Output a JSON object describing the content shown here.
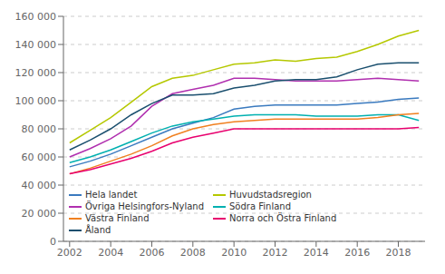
{
  "chart_data": {
    "type": "line",
    "x": [
      2002,
      2003,
      2004,
      2005,
      2006,
      2007,
      2008,
      2009,
      2010,
      2011,
      2012,
      2013,
      2014,
      2015,
      2016,
      2017,
      2018,
      2019
    ],
    "series": [
      {
        "name": "Hela landet",
        "color": "#3a7abf",
        "values": [
          53000,
          57000,
          62000,
          68000,
          74000,
          80000,
          84000,
          88000,
          94000,
          96000,
          97000,
          97000,
          97000,
          97000,
          98000,
          99000,
          101000,
          102000
        ]
      },
      {
        "name": "Huvudstadsregion",
        "color": "#b5c800",
        "values": [
          70000,
          79000,
          88000,
          99000,
          110000,
          116000,
          118000,
          122000,
          126000,
          127000,
          129000,
          128000,
          130000,
          131000,
          135000,
          140000,
          146000,
          150000
        ]
      },
      {
        "name": "Övriga Helsingfors-Nyland",
        "color": "#b02faf",
        "values": [
          60000,
          66000,
          73000,
          82000,
          96000,
          105000,
          108000,
          111000,
          116000,
          116000,
          115000,
          114000,
          114000,
          114000,
          115000,
          116000,
          115000,
          114000
        ]
      },
      {
        "name": "Södra Finland",
        "color": "#00b0b0",
        "values": [
          56000,
          60000,
          65000,
          71000,
          77000,
          82000,
          85000,
          87000,
          89000,
          90000,
          90000,
          90000,
          89000,
          89000,
          89000,
          90000,
          90000,
          86000
        ]
      },
      {
        "name": "Västra Finland",
        "color": "#f08020",
        "values": [
          48000,
          52000,
          57000,
          62000,
          68000,
          75000,
          80000,
          83000,
          85000,
          86000,
          87000,
          87000,
          87000,
          87000,
          87000,
          88000,
          90000,
          91000
        ]
      },
      {
        "name": "Norra och Östra Finland",
        "color": "#e8006e",
        "values": [
          48000,
          51000,
          55000,
          59000,
          64000,
          70000,
          74000,
          77000,
          80000,
          80000,
          80000,
          80000,
          80000,
          80000,
          80000,
          80000,
          80000,
          81000
        ]
      },
      {
        "name": "Åland",
        "color": "#1a4f6e",
        "values": [
          65000,
          72000,
          80000,
          90000,
          98000,
          104000,
          104000,
          105000,
          109000,
          111000,
          114000,
          115000,
          115000,
          117000,
          122000,
          126000,
          127000,
          127000
        ]
      }
    ],
    "xlim": [
      2001.7,
      2019.3
    ],
    "xticks": [
      2002,
      2004,
      2006,
      2008,
      2010,
      2012,
      2014,
      2016,
      2018
    ],
    "ylim": [
      0,
      160000
    ],
    "yticks": [
      0,
      {
        "value": 20000,
        "label": "20 000"
      },
      {
        "value": 40000,
        "label": "40 000"
      },
      {
        "value": 60000,
        "label": "60 000"
      },
      {
        "value": 80000,
        "label": "80 000"
      },
      {
        "value": 100000,
        "label": "100 000"
      },
      {
        "value": 120000,
        "label": "120 000"
      },
      {
        "value": 140000,
        "label": "140 000"
      },
      {
        "value": 160000,
        "label": "160 000"
      }
    ],
    "grid": true,
    "legend": "lower left"
  }
}
